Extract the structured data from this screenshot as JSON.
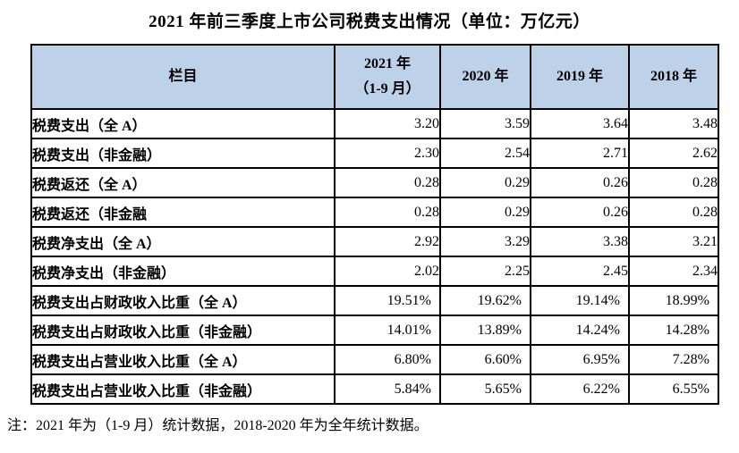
{
  "title": "2021 年前三季度上市公司税费支出情况（单位：万亿元）",
  "header": {
    "item": "栏目",
    "y2021": "2021 年\n（1-9 月）",
    "y2020": "2020 年",
    "y2019": "2019 年",
    "y2018": "2018 年"
  },
  "rows": [
    {
      "label": "税费支出（全 A）",
      "values": [
        "3.20",
        "3.59",
        "3.64",
        "3.48"
      ]
    },
    {
      "label": "税费支出（非金融）",
      "values": [
        "2.30",
        "2.54",
        "2.71",
        "2.62"
      ]
    },
    {
      "label": "税费返还（全 A）",
      "values": [
        "0.28",
        "0.29",
        "0.26",
        "0.28"
      ]
    },
    {
      "label": "税费返还（非金融",
      "values": [
        "0.28",
        "0.29",
        "0.26",
        "0.28"
      ]
    },
    {
      "label": "税费净支出（全 A）",
      "values": [
        "2.92",
        "3.29",
        "3.38",
        "3.21"
      ]
    },
    {
      "label": "税费净支出（非金融）",
      "values": [
        "2.02",
        "2.25",
        "2.45",
        "2.34"
      ]
    },
    {
      "label": "税费支出占财政收入比重（全 A）",
      "values": [
        "19.51%",
        "19.62%",
        "19.14%",
        "18.99%"
      ]
    },
    {
      "label": "税费支出占财政收入比重（非金融）",
      "values": [
        "14.01%",
        "13.89%",
        "14.24%",
        "14.28%"
      ]
    },
    {
      "label": "税费支出占营业收入比重（全 A）",
      "values": [
        "6.80%",
        "6.60%",
        "6.95%",
        "7.28%"
      ]
    },
    {
      "label": "税费支出占营业收入比重（非金融）",
      "values": [
        "5.84%",
        "5.65%",
        "6.22%",
        "6.55%"
      ]
    }
  ],
  "note": "注：2021 年为（1-9 月）统计数据，2018-2020 年为全年统计数据。",
  "colors": {
    "header_bg": "#BDD1E8",
    "border": "#000000",
    "text": "#000000"
  }
}
